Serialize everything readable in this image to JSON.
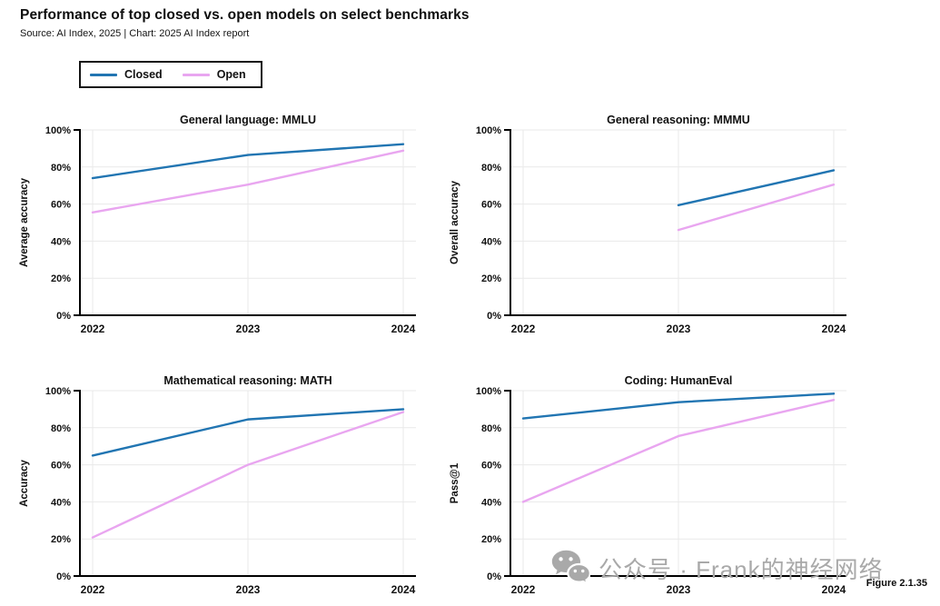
{
  "header": {
    "title": "Performance of top closed vs. open models on select benchmarks",
    "source": "Source: AI Index, 2025 | Chart: 2025 AI Index report"
  },
  "colors": {
    "closed": "#2175b2",
    "open": "#e9a6f0",
    "grid": "#e9e9e9",
    "axis": "#000000",
    "text": "#101010",
    "watermark": "#a9a9a9"
  },
  "legend": {
    "items": [
      {
        "label": "Closed",
        "color_key": "closed"
      },
      {
        "label": "Open",
        "color_key": "open"
      }
    ]
  },
  "chart_data": [
    {
      "id": "mmlu",
      "type": "line",
      "title": "General language: MMLU",
      "ylabel": "Average accuracy",
      "x": [
        "2022",
        "2023",
        "2024"
      ],
      "ylim": [
        0,
        100
      ],
      "yticks": [
        0,
        20,
        40,
        60,
        80,
        100
      ],
      "ytick_suffix": "%",
      "grid": true,
      "legend_position": "shared-top",
      "series": [
        {
          "name": "Closed",
          "color_key": "closed",
          "values": [
            74,
            86.5,
            92.3
          ]
        },
        {
          "name": "Open",
          "color_key": "open",
          "values": [
            55.5,
            70.5,
            88.8
          ]
        }
      ]
    },
    {
      "id": "mmmu",
      "type": "line",
      "title": "General reasoning: MMMU",
      "ylabel": "Overall accuracy",
      "x": [
        "2022",
        "2023",
        "2024"
      ],
      "ylim": [
        0,
        100
      ],
      "yticks": [
        0,
        20,
        40,
        60,
        80,
        100
      ],
      "ytick_suffix": "%",
      "grid": true,
      "legend_position": "shared-top",
      "series": [
        {
          "name": "Closed",
          "color_key": "closed",
          "values": [
            null,
            59.4,
            78.2
          ]
        },
        {
          "name": "Open",
          "color_key": "open",
          "values": [
            null,
            46,
            70.5
          ]
        }
      ]
    },
    {
      "id": "math",
      "type": "line",
      "title": "Mathematical reasoning: MATH",
      "ylabel": "Accuracy",
      "x": [
        "2022",
        "2023",
        "2024"
      ],
      "ylim": [
        0,
        100
      ],
      "yticks": [
        0,
        20,
        40,
        60,
        80,
        100
      ],
      "ytick_suffix": "%",
      "grid": true,
      "legend_position": "shared-top",
      "series": [
        {
          "name": "Closed",
          "color_key": "closed",
          "values": [
            65,
            84.5,
            90
          ]
        },
        {
          "name": "Open",
          "color_key": "open",
          "values": [
            20.8,
            60,
            88.5
          ]
        }
      ]
    },
    {
      "id": "humaneval",
      "type": "line",
      "title": "Coding: HumanEval",
      "ylabel": "Pass@1",
      "x": [
        "2022",
        "2023",
        "2024"
      ],
      "ylim": [
        0,
        100
      ],
      "yticks": [
        0,
        20,
        40,
        60,
        80,
        100
      ],
      "ytick_suffix": "%",
      "grid": true,
      "legend_position": "shared-top",
      "series": [
        {
          "name": "Closed",
          "color_key": "closed",
          "values": [
            85,
            93.8,
            98.4
          ]
        },
        {
          "name": "Open",
          "color_key": "open",
          "values": [
            40,
            75.5,
            95
          ]
        }
      ]
    }
  ],
  "watermark": {
    "icon": "wechat-icon",
    "text": "公众号 · Frank的神经网络"
  },
  "figure_label": "Figure 2.1.35"
}
